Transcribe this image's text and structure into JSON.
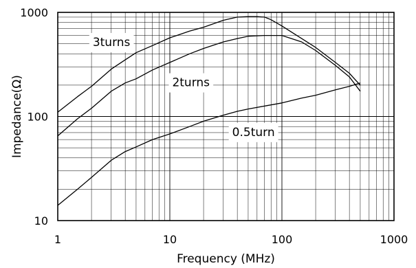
{
  "chart_data": {
    "type": "line",
    "xlabel": "Frequency (MHz)",
    "ylabel": "Impedance(Ω)",
    "xscale": "log",
    "yscale": "log",
    "xlim": [
      1,
      1000
    ],
    "ylim": [
      10,
      1000
    ],
    "grid": true,
    "x_ticks": [
      "1",
      "10",
      "100",
      "1000"
    ],
    "y_ticks": [
      "10",
      "100",
      "1000"
    ],
    "series": [
      {
        "name": "3turns",
        "x": [
          1,
          1.5,
          2,
          3,
          4,
          5,
          7,
          10,
          15,
          20,
          30,
          40,
          50,
          60,
          70,
          80,
          100,
          150,
          200,
          300,
          400,
          500
        ],
        "y": [
          110,
          155,
          195,
          285,
          350,
          410,
          480,
          570,
          660,
          720,
          840,
          900,
          910,
          910,
          900,
          850,
          740,
          560,
          460,
          330,
          260,
          200
        ]
      },
      {
        "name": "2turns",
        "x": [
          1,
          1.5,
          2,
          3,
          4,
          5,
          7,
          10,
          15,
          20,
          30,
          40,
          50,
          70,
          100,
          150,
          200,
          300,
          400,
          500
        ],
        "y": [
          65,
          95,
          120,
          175,
          210,
          230,
          280,
          330,
          400,
          450,
          520,
          560,
          590,
          600,
          600,
          520,
          430,
          310,
          240,
          175
        ]
      },
      {
        "name": "0.5turn",
        "x": [
          1,
          1.5,
          2,
          3,
          4,
          5,
          7,
          10,
          15,
          20,
          30,
          40,
          50,
          70,
          100,
          150,
          200,
          300,
          400,
          500
        ],
        "y": [
          14,
          20,
          26,
          38,
          46,
          51,
          60,
          68,
          80,
          90,
          103,
          112,
          118,
          126,
          135,
          150,
          160,
          180,
          195,
          210
        ]
      }
    ]
  }
}
